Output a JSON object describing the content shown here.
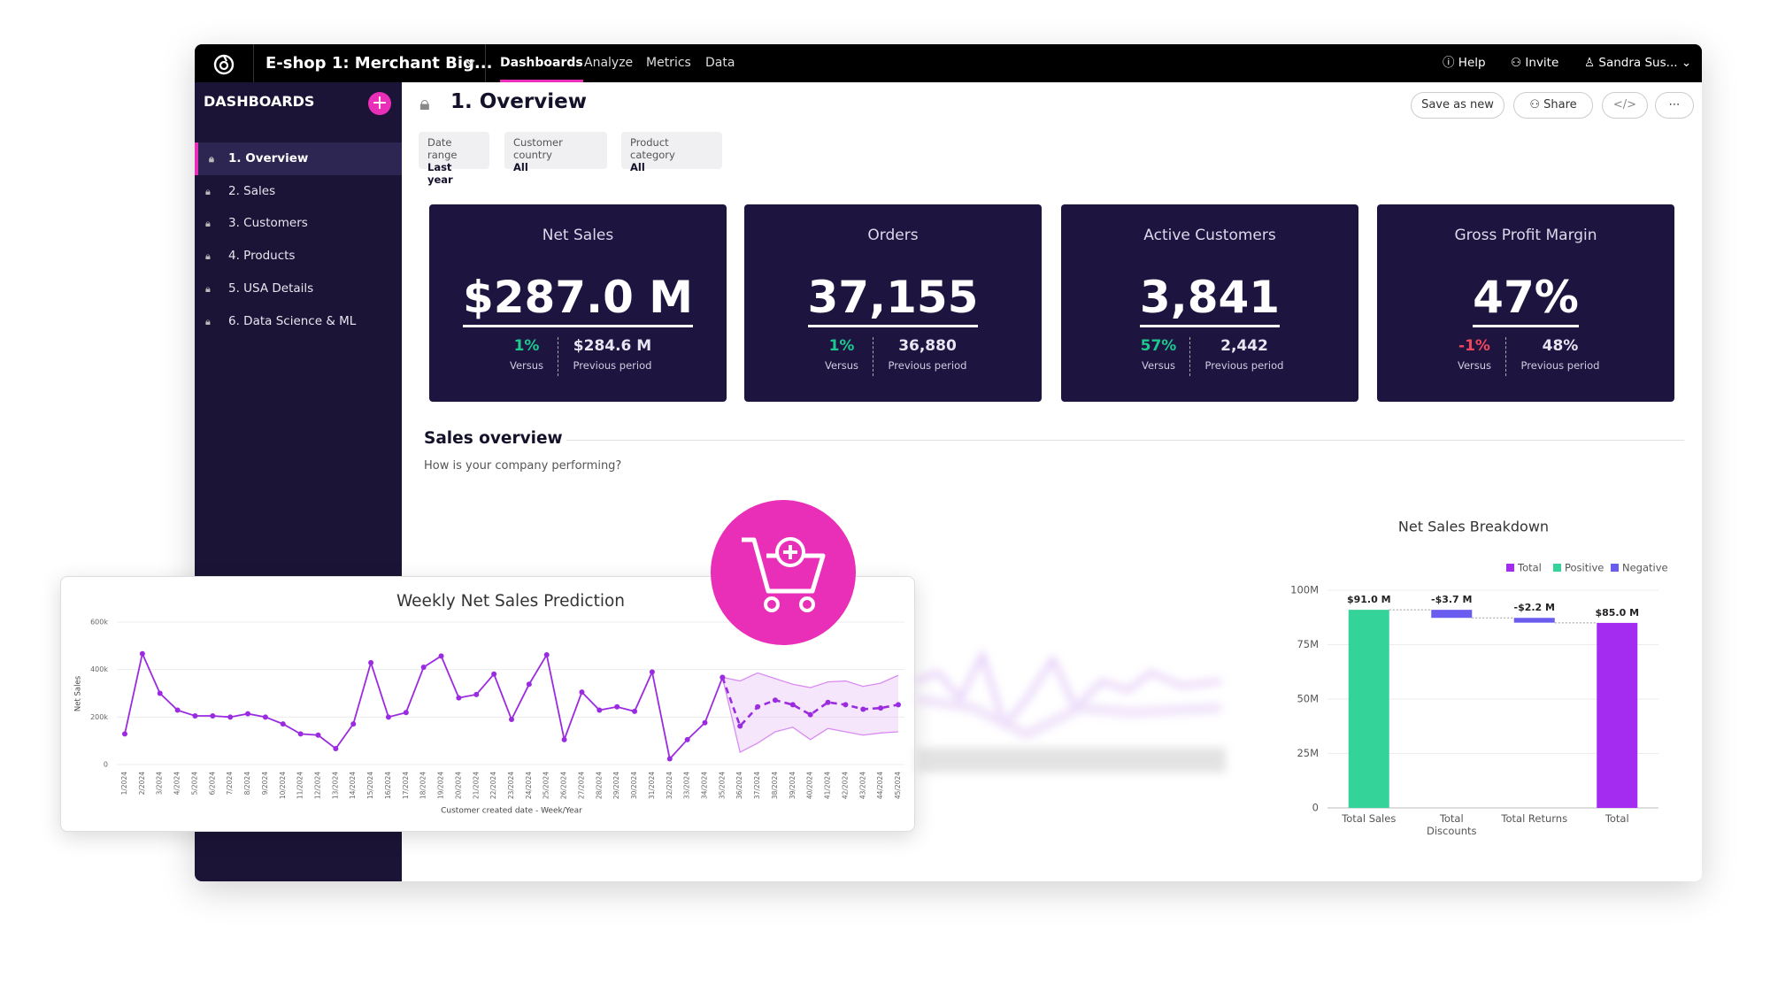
{
  "header": {
    "workspace": "E-shop 1: Merchant Big...",
    "nav": [
      "Dashboards",
      "Analyze",
      "Metrics",
      "Data"
    ],
    "help": "Help",
    "invite": "Invite",
    "user": "Sandra Sus..."
  },
  "sidebar": {
    "title": "DASHBOARDS",
    "items": [
      "1. Overview",
      "2. Sales",
      "3. Customers",
      "4. Products",
      "5. USA Details",
      "6. Data Science & ML"
    ]
  },
  "toolbar": {
    "title": "1. Overview",
    "save": "Save as new",
    "share": "Share"
  },
  "filters": [
    {
      "label": "Date range",
      "value": "Last year"
    },
    {
      "label": "Customer country",
      "value": "All"
    },
    {
      "label": "Product category",
      "value": "All"
    }
  ],
  "kpis": [
    {
      "title": "Net Sales",
      "value": "$287.0 M",
      "change": "1%",
      "change_color": "#1bc98e",
      "change_label": "Versus",
      "previous": "$284.6 M",
      "previous_label": "Previous period"
    },
    {
      "title": "Orders",
      "value": "37,155",
      "change": "1%",
      "change_color": "#1bc98e",
      "change_label": "Versus",
      "previous": "36,880",
      "previous_label": "Previous period"
    },
    {
      "title": "Active Customers",
      "value": "3,841",
      "change": "57%",
      "change_color": "#1bc98e",
      "change_label": "Versus",
      "previous": "2,442",
      "previous_label": "Previous period"
    },
    {
      "title": "Gross Profit Margin",
      "value": "47%",
      "change": "-1%",
      "change_color": "#f0475c",
      "change_label": "Versus",
      "previous": "48%",
      "previous_label": "Previous period"
    }
  ],
  "section": {
    "title": "Sales overview",
    "subtitle": "How is your company performing?"
  },
  "chart_data": [
    {
      "type": "line",
      "title": "Weekly Net Sales Prediction",
      "xlabel": "Customer created date - Week/Year",
      "ylabel": "Net Sales",
      "categories": [
        "1/2024",
        "2/2024",
        "3/2024",
        "4/2024",
        "5/2024",
        "6/2024",
        "7/2024",
        "8/2024",
        "9/2024",
        "10/2024",
        "11/2024",
        "12/2024",
        "13/2024",
        "14/2024",
        "15/2024",
        "16/2024",
        "17/2024",
        "18/2024",
        "19/2024",
        "20/2024",
        "21/2024",
        "22/2024",
        "23/2024",
        "24/2024",
        "25/2024",
        "26/2024",
        "27/2024",
        "28/2024",
        "29/2024",
        "30/2024",
        "31/2024",
        "32/2024",
        "33/2024",
        "34/2024",
        "35/2024",
        "36/2024",
        "37/2024",
        "38/2024",
        "39/2024",
        "40/2024",
        "41/2024",
        "42/2024",
        "43/2024",
        "44/2024",
        "45/2024"
      ],
      "series": [
        {
          "color": "#9b2be0",
          "dashed": false,
          "markers": true,
          "values": [
            129,
            467,
            300,
            229,
            205,
            205,
            200,
            214,
            200,
            171,
            129,
            124,
            67,
            171,
            429,
            200,
            219,
            410,
            457,
            281,
            295,
            381,
            190,
            338,
            462,
            105,
            305,
            229,
            243,
            224,
            390,
            24,
            105,
            176,
            367,
            null,
            null,
            null,
            null,
            null,
            null,
            null,
            null,
            null,
            null
          ]
        },
        {
          "color": "#9b2be0",
          "dashed": true,
          "markers": true,
          "values": [
            null,
            null,
            null,
            null,
            null,
            null,
            null,
            null,
            null,
            null,
            null,
            null,
            null,
            null,
            null,
            null,
            null,
            null,
            null,
            null,
            null,
            null,
            null,
            null,
            null,
            null,
            null,
            null,
            null,
            null,
            null,
            null,
            null,
            null,
            367,
            162,
            243,
            271,
            252,
            210,
            262,
            252,
            233,
            238,
            252
          ]
        }
      ],
      "band": {
        "color": "#e6b8f5",
        "line_color": "#d88cf0",
        "upper": [
          null,
          null,
          null,
          null,
          null,
          null,
          null,
          null,
          null,
          null,
          null,
          null,
          null,
          null,
          null,
          null,
          null,
          null,
          null,
          null,
          null,
          null,
          null,
          null,
          null,
          null,
          null,
          null,
          null,
          null,
          null,
          null,
          null,
          null,
          367,
          352,
          386,
          362,
          338,
          324,
          348,
          352,
          329,
          343,
          376
        ],
        "lower": [
          null,
          null,
          null,
          null,
          null,
          null,
          null,
          null,
          null,
          null,
          null,
          null,
          null,
          null,
          null,
          null,
          null,
          null,
          null,
          null,
          null,
          null,
          null,
          null,
          null,
          null,
          null,
          null,
          null,
          null,
          null,
          null,
          null,
          null,
          367,
          52,
          90,
          138,
          157,
          105,
          152,
          138,
          124,
          133,
          138
        ]
      },
      "ylim": [
        0,
        600
      ],
      "yticks": [
        0,
        {
          "value": 200,
          "label": "200k"
        },
        {
          "value": 400,
          "label": "400k"
        },
        {
          "value": 600,
          "label": "600k"
        }
      ],
      "grid": true
    },
    {
      "type": "waterfall",
      "title": "Net Sales Breakdown",
      "legend": [
        {
          "name": "Total",
          "color": "#a32cf0"
        },
        {
          "name": "Positive",
          "color": "#34d399"
        },
        {
          "name": "Negative",
          "color": "#6b5cf0"
        }
      ],
      "categories": [
        "Total Sales",
        "Total Discounts",
        "Total Returns",
        "Total"
      ],
      "measures": [
        "absolute",
        "relative",
        "relative",
        "total"
      ],
      "values": [
        91.0,
        -3.7,
        -2.2,
        85.0
      ],
      "value_labels": [
        "$91.0 M",
        "-$3.7 M",
        "-$2.2 M",
        "$85.0 M"
      ],
      "colors": [
        "#34d399",
        "#6b5cf0",
        "#6b5cf0",
        "#a32cf0"
      ],
      "ylim": [
        0,
        100
      ],
      "yticks": [
        0,
        {
          "value": 25,
          "label": "25M"
        },
        {
          "value": 50,
          "label": "50M"
        },
        {
          "value": 75,
          "label": "75M"
        },
        {
          "value": 100,
          "label": "100M"
        }
      ],
      "grid": true
    }
  ]
}
